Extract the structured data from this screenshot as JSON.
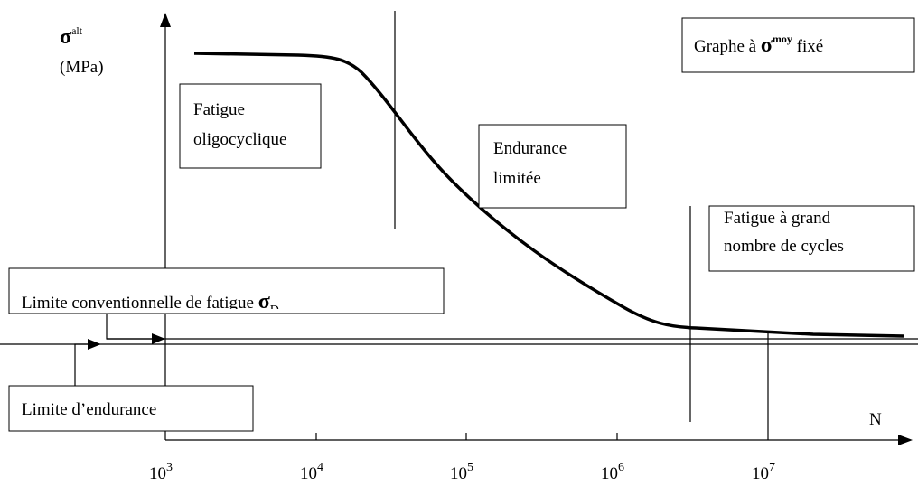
{
  "axes": {
    "y_symbol": "σ",
    "y_superscript": "alt",
    "y_unit": "(MPa)",
    "x_label": "N",
    "x_ticks": [
      {
        "base": "10",
        "exponent": "3"
      },
      {
        "base": "10",
        "exponent": "4"
      },
      {
        "base": "10",
        "exponent": "5"
      },
      {
        "base": "10",
        "exponent": "6"
      },
      {
        "base": "10",
        "exponent": "7"
      }
    ]
  },
  "title_box": {
    "prefix": "Graphe à",
    "symbol": "σ",
    "superscript": "moy",
    "suffix": "fixé"
  },
  "zones": [
    {
      "lines": [
        "Fatigue",
        "oligocyclique"
      ]
    },
    {
      "lines": [
        "Endurance",
        "limitée"
      ]
    },
    {
      "lines": [
        "Fatigue à grand",
        "nombre de cycles"
      ]
    }
  ],
  "limits": {
    "conventional": {
      "text": "Limite conventionnelle de fatigue",
      "symbol": "σ",
      "subscript": "D"
    },
    "endurance": "Limite d’endurance"
  }
}
